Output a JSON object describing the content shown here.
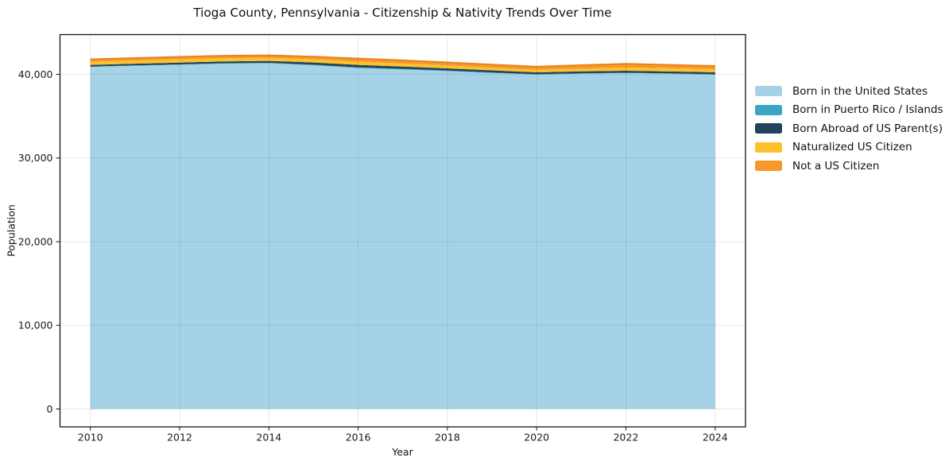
{
  "chart_data": {
    "type": "area",
    "stacked": true,
    "title": "Tioga County, Pennsylvania - Citizenship & Nativity Trends Over Time",
    "xlabel": "Year",
    "ylabel": "Population",
    "x": [
      2010,
      2011,
      2012,
      2013,
      2014,
      2015,
      2016,
      2017,
      2018,
      2019,
      2020,
      2021,
      2022,
      2023,
      2024
    ],
    "series": [
      {
        "name": "Born in the United States",
        "color": "#a6d2e8",
        "values": [
          40900,
          41030,
          41150,
          41280,
          41325,
          41090,
          40755,
          40590,
          40400,
          40180,
          39970,
          40080,
          40160,
          40070,
          39970
        ]
      },
      {
        "name": "Born in Puerto Rico / Islands",
        "color": "#3ba5c3",
        "values": [
          40,
          45,
          50,
          55,
          60,
          70,
          80,
          70,
          60,
          50,
          45,
          40,
          40,
          40,
          40
        ]
      },
      {
        "name": "Born Abroad of US Parent(s)",
        "color": "#20455a",
        "values": [
          195,
          205,
          215,
          220,
          225,
          260,
          300,
          280,
          260,
          250,
          235,
          240,
          240,
          240,
          240
        ]
      },
      {
        "name": "Naturalized US Citizen",
        "color": "#fdc12e",
        "values": [
          380,
          380,
          385,
          385,
          380,
          380,
          380,
          360,
          340,
          315,
          290,
          335,
          380,
          380,
          380
        ]
      },
      {
        "name": "Not a US Citizen",
        "color": "#f89829",
        "values": [
          290,
          295,
          300,
          290,
          285,
          330,
          380,
          380,
          375,
          375,
          380,
          410,
          440,
          410,
          380
        ]
      }
    ],
    "top_edge_color": "#e5851d",
    "xticks": [
      2010,
      2012,
      2014,
      2016,
      2018,
      2020,
      2022,
      2024
    ],
    "yticks": [
      0,
      10000,
      20000,
      30000,
      40000
    ],
    "ytick_labels": [
      "0",
      "10,000",
      "20,000",
      "30,000",
      "40,000"
    ],
    "xlim": [
      2009.32,
      2024.68
    ],
    "ylim": [
      -2140,
      44760
    ],
    "grid": true,
    "legend_position": "right",
    "spine_color": "#151515",
    "grid_color": "rgba(0,0,0,0.09)"
  }
}
